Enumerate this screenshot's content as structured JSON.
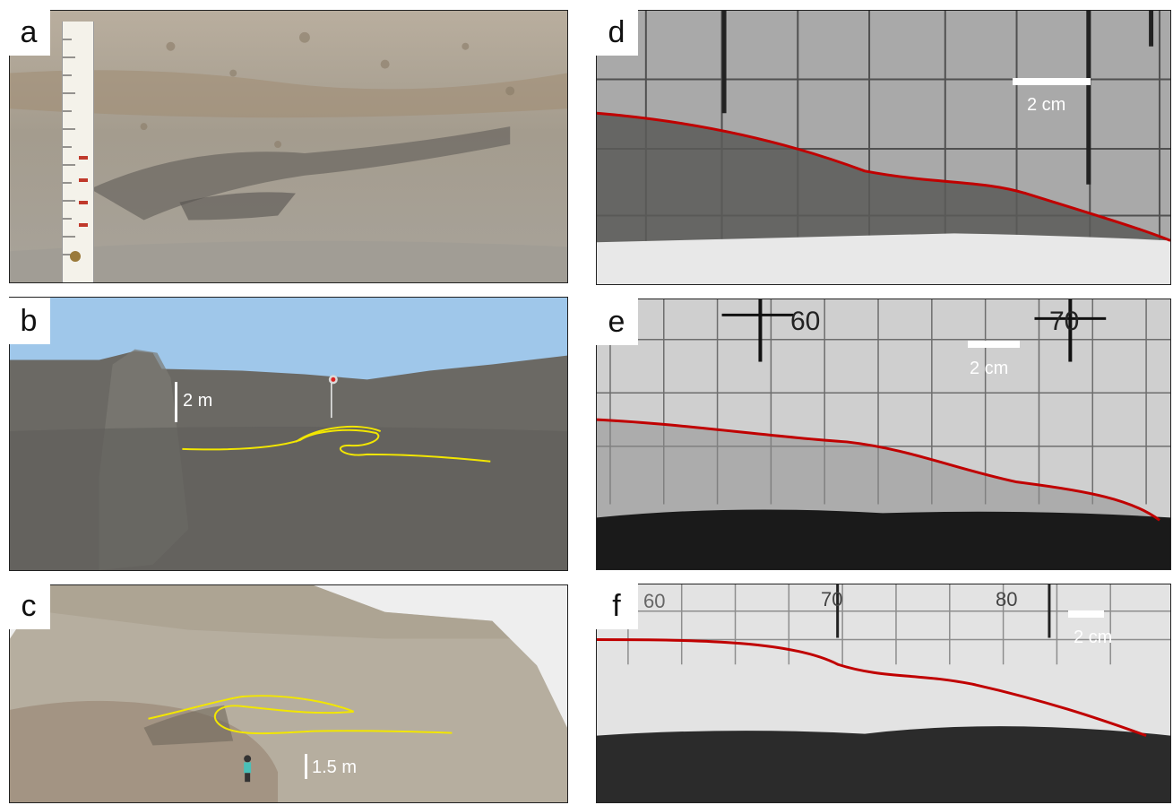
{
  "panels": {
    "a": {
      "letter": "a"
    },
    "b": {
      "letter": "b",
      "scale_label": "2 m"
    },
    "c": {
      "letter": "c",
      "scale_label": "1.5 m"
    },
    "d": {
      "letter": "d",
      "scale_label": "2 cm"
    },
    "e": {
      "letter": "e",
      "scale_label": "2 cm",
      "grid_numbers": [
        "60",
        "70"
      ]
    },
    "f": {
      "letter": "f",
      "scale_label": "2 cm",
      "grid_numbers": [
        "60",
        "70",
        "80"
      ]
    }
  },
  "colors": {
    "trace_yellow": "#f2e600",
    "trace_red": "#c00000",
    "sky": "#9fc7ea",
    "rock_grey": "#66645f",
    "sand": "#b7aa96"
  },
  "icons": {
    "ruler": "folding-ruler-icon",
    "flag": "flag-icon",
    "person": "person-icon"
  }
}
